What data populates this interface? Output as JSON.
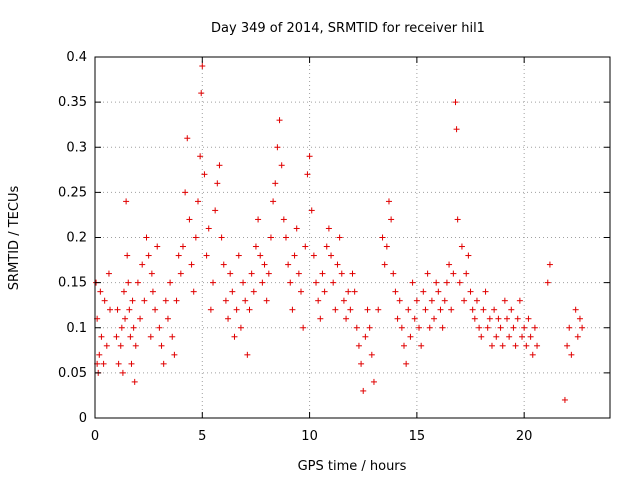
{
  "chart_data": {
    "type": "scatter",
    "title": "Day 349 of 2014, SRMTID for receiver hil1",
    "xlabel": "GPS time / hours",
    "ylabel": "SRMTID / TECUs",
    "xlim": [
      0,
      24
    ],
    "ylim": [
      0,
      0.4
    ],
    "x_ticks": [
      0,
      5,
      10,
      15,
      20
    ],
    "x_tick_labels": [
      "0",
      "5",
      "10",
      "15",
      "20"
    ],
    "y_ticks": [
      0,
      0.05,
      0.1,
      0.15,
      0.2,
      0.25,
      0.3,
      0.35,
      0.4
    ],
    "y_tick_labels": [
      "0",
      "0.05",
      "0.1",
      "0.15",
      "0.2",
      "0.25",
      "0.3",
      "0.35",
      "0.4"
    ],
    "grid": true,
    "marker": "+",
    "color": "#e00000",
    "series": [
      {
        "name": "SRMTID",
        "x": [
          0.05,
          0.1,
          0.1,
          0.15,
          0.2,
          0.25,
          0.3,
          0.4,
          0.45,
          0.55,
          0.65,
          0.7,
          1.0,
          1.05,
          1.1,
          1.2,
          1.25,
          1.3,
          1.35,
          1.4,
          1.45,
          1.5,
          1.55,
          1.6,
          1.65,
          1.7,
          1.75,
          1.8,
          1.85,
          1.9,
          2.0,
          2.1,
          2.2,
          2.3,
          2.4,
          2.5,
          2.6,
          2.65,
          2.7,
          2.8,
          2.9,
          3.0,
          3.1,
          3.2,
          3.3,
          3.4,
          3.5,
          3.6,
          3.7,
          3.8,
          3.9,
          4.0,
          4.1,
          4.2,
          4.3,
          4.4,
          4.5,
          4.6,
          4.7,
          4.8,
          4.9,
          4.95,
          5.0,
          5.1,
          5.2,
          5.3,
          5.4,
          5.5,
          5.6,
          5.7,
          5.8,
          5.9,
          6.0,
          6.1,
          6.2,
          6.3,
          6.4,
          6.5,
          6.6,
          6.7,
          6.8,
          6.9,
          7.0,
          7.1,
          7.2,
          7.3,
          7.4,
          7.5,
          7.6,
          7.7,
          7.8,
          7.9,
          8.0,
          8.1,
          8.2,
          8.3,
          8.4,
          8.5,
          8.6,
          8.7,
          8.8,
          8.9,
          9.0,
          9.1,
          9.2,
          9.3,
          9.4,
          9.5,
          9.6,
          9.7,
          9.8,
          9.9,
          10.0,
          10.1,
          10.2,
          10.3,
          10.4,
          10.5,
          10.6,
          10.7,
          10.8,
          10.9,
          11.0,
          11.1,
          11.2,
          11.3,
          11.4,
          11.5,
          11.6,
          11.7,
          11.8,
          11.9,
          12.0,
          12.1,
          12.2,
          12.3,
          12.4,
          12.5,
          12.6,
          12.7,
          12.8,
          12.9,
          13.0,
          13.2,
          13.4,
          13.5,
          13.6,
          13.7,
          13.8,
          13.9,
          14.0,
          14.1,
          14.2,
          14.3,
          14.4,
          14.5,
          14.6,
          14.7,
          14.8,
          14.9,
          15.0,
          15.1,
          15.2,
          15.3,
          15.4,
          15.5,
          15.6,
          15.7,
          15.8,
          15.9,
          16.0,
          16.1,
          16.2,
          16.3,
          16.4,
          16.5,
          16.6,
          16.7,
          16.8,
          16.85,
          16.9,
          17.0,
          17.1,
          17.2,
          17.3,
          17.4,
          17.5,
          17.6,
          17.7,
          17.8,
          17.9,
          18.0,
          18.1,
          18.2,
          18.3,
          18.4,
          18.5,
          18.6,
          18.7,
          18.8,
          18.9,
          19.0,
          19.1,
          19.2,
          19.3,
          19.4,
          19.5,
          19.6,
          19.7,
          19.8,
          19.9,
          20.0,
          20.1,
          20.2,
          20.3,
          20.4,
          20.5,
          20.6,
          21.1,
          21.2,
          21.9,
          22.0,
          22.1,
          22.2,
          22.4,
          22.5,
          22.6,
          22.7
        ],
        "y": [
          0.15,
          0.06,
          0.11,
          0.05,
          0.07,
          0.14,
          0.09,
          0.06,
          0.13,
          0.08,
          0.16,
          0.12,
          0.09,
          0.12,
          0.06,
          0.08,
          0.1,
          0.05,
          0.14,
          0.11,
          0.24,
          0.18,
          0.15,
          0.12,
          0.09,
          0.06,
          0.13,
          0.1,
          0.04,
          0.08,
          0.15,
          0.11,
          0.17,
          0.13,
          0.2,
          0.18,
          0.09,
          0.16,
          0.14,
          0.12,
          0.19,
          0.1,
          0.08,
          0.06,
          0.13,
          0.11,
          0.15,
          0.09,
          0.07,
          0.13,
          0.18,
          0.16,
          0.19,
          0.25,
          0.31,
          0.22,
          0.17,
          0.14,
          0.2,
          0.24,
          0.29,
          0.36,
          0.39,
          0.27,
          0.18,
          0.21,
          0.12,
          0.15,
          0.23,
          0.26,
          0.28,
          0.2,
          0.17,
          0.13,
          0.11,
          0.16,
          0.14,
          0.09,
          0.12,
          0.18,
          0.1,
          0.15,
          0.13,
          0.07,
          0.12,
          0.16,
          0.14,
          0.19,
          0.22,
          0.18,
          0.15,
          0.17,
          0.13,
          0.16,
          0.2,
          0.24,
          0.26,
          0.3,
          0.33,
          0.28,
          0.22,
          0.2,
          0.17,
          0.15,
          0.12,
          0.18,
          0.21,
          0.16,
          0.14,
          0.1,
          0.19,
          0.27,
          0.29,
          0.23,
          0.18,
          0.15,
          0.13,
          0.11,
          0.16,
          0.14,
          0.19,
          0.21,
          0.18,
          0.15,
          0.12,
          0.17,
          0.2,
          0.16,
          0.13,
          0.11,
          0.14,
          0.12,
          0.16,
          0.14,
          0.1,
          0.08,
          0.06,
          0.03,
          0.09,
          0.12,
          0.1,
          0.07,
          0.04,
          0.12,
          0.2,
          0.17,
          0.19,
          0.24,
          0.22,
          0.16,
          0.14,
          0.11,
          0.13,
          0.1,
          0.08,
          0.06,
          0.12,
          0.09,
          0.15,
          0.11,
          0.13,
          0.1,
          0.08,
          0.14,
          0.12,
          0.16,
          0.1,
          0.13,
          0.11,
          0.15,
          0.14,
          0.12,
          0.1,
          0.13,
          0.15,
          0.17,
          0.12,
          0.16,
          0.35,
          0.32,
          0.22,
          0.15,
          0.19,
          0.13,
          0.16,
          0.18,
          0.14,
          0.12,
          0.11,
          0.13,
          0.1,
          0.09,
          0.12,
          0.14,
          0.1,
          0.11,
          0.08,
          0.12,
          0.09,
          0.11,
          0.1,
          0.08,
          0.13,
          0.11,
          0.09,
          0.12,
          0.1,
          0.08,
          0.11,
          0.13,
          0.09,
          0.1,
          0.08,
          0.11,
          0.09,
          0.07,
          0.1,
          0.08,
          0.15,
          0.17,
          0.02,
          0.08,
          0.1,
          0.07,
          0.12,
          0.09,
          0.11,
          0.1
        ]
      }
    ]
  }
}
